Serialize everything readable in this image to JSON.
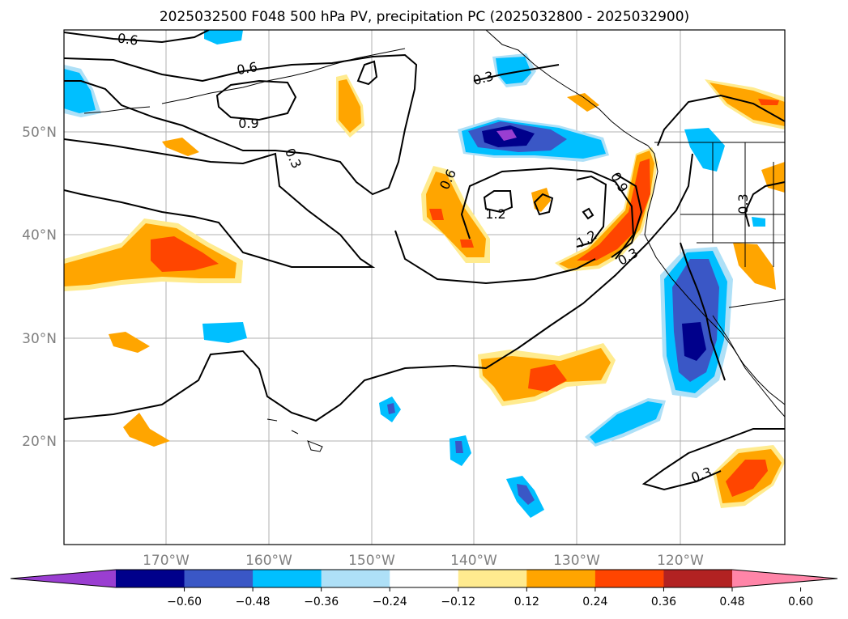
{
  "title": "2025032500 F048 500 hPa PV, precipitation PC (2025032800 - 2025032900)",
  "lat_labels": [
    "50°N",
    "40°N",
    "30°N",
    "20°N"
  ],
  "lon_labels": [
    "170°W",
    "160°W",
    "150°W",
    "140°W",
    "130°W",
    "120°W"
  ],
  "colorbar": {
    "colors": [
      "#9a3ed1",
      "#00008b",
      "#3a57c6",
      "#00bfff",
      "#aee0f7",
      "#ffffff",
      "#ffeb8f",
      "#ffa500",
      "#ff4500",
      "#b22222",
      "#ff85a8"
    ],
    "tick_labels": [
      "−0.60",
      "−0.48",
      "−0.36",
      "−0.24",
      "−0.12",
      "0.12",
      "0.24",
      "0.36",
      "0.48",
      "0.60"
    ]
  },
  "contour_labels": [
    "0.6",
    "0.6",
    "0.9",
    "0.3",
    "0.3",
    "0.6",
    "1.2",
    "0.9",
    "1.2",
    "0.3",
    "0.3",
    "0.3"
  ]
}
